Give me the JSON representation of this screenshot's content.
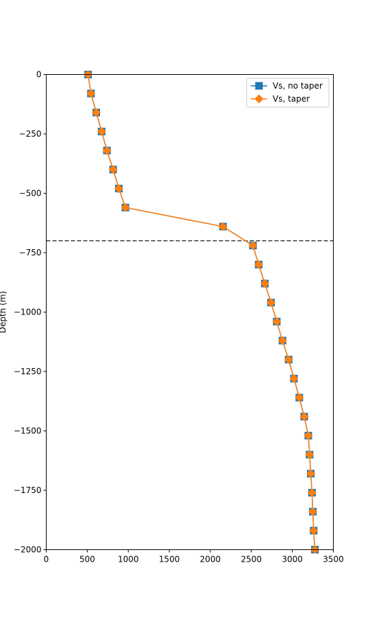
{
  "chart_data": {
    "type": "line",
    "title": "",
    "xlabel": "",
    "ylabel": "Depth (m)",
    "xlim": [
      0,
      3500
    ],
    "ylim": [
      -2000,
      0
    ],
    "xticks": [
      0,
      500,
      1000,
      1500,
      2000,
      2500,
      3000,
      3500
    ],
    "yticks": [
      0,
      -250,
      -500,
      -750,
      -1000,
      -1250,
      -1500,
      -1750,
      -2000
    ],
    "xtick_labels": [
      "0",
      "500",
      "1000",
      "1500",
      "2000",
      "2500",
      "3000",
      "3500"
    ],
    "ytick_labels": [
      "0",
      "−250",
      "−500",
      "−750",
      "−1000",
      "−1250",
      "−1500",
      "−1750",
      "−2000"
    ],
    "grid": false,
    "legend_position": "top-right",
    "reference_line": {
      "orientation": "horizontal",
      "y": -700,
      "style": "dashed",
      "color": "#000000"
    },
    "depths": [
      0,
      -80,
      -160,
      -240,
      -320,
      -400,
      -480,
      -560,
      -640,
      -720,
      -800,
      -880,
      -960,
      -1040,
      -1120,
      -1200,
      -1280,
      -1360,
      -1440,
      -1520,
      -1600,
      -1680,
      -1760,
      -1840,
      -1920,
      -2000
    ],
    "series": [
      {
        "name": "Vs, no taper",
        "color": "#1f77b4",
        "marker": "square",
        "values": [
          510,
          545,
          610,
          675,
          740,
          815,
          885,
          965,
          2155,
          2520,
          2590,
          2665,
          2740,
          2810,
          2880,
          2955,
          3020,
          3085,
          3145,
          3195,
          3210,
          3225,
          3240,
          3250,
          3260,
          3275
        ]
      },
      {
        "name": "Vs, taper",
        "color": "#ff7f0e",
        "marker": "diamond",
        "values": [
          510,
          545,
          610,
          675,
          740,
          815,
          885,
          965,
          2155,
          2520,
          2590,
          2665,
          2740,
          2810,
          2880,
          2955,
          3020,
          3085,
          3145,
          3195,
          3210,
          3225,
          3240,
          3250,
          3260,
          3275
        ]
      }
    ]
  }
}
